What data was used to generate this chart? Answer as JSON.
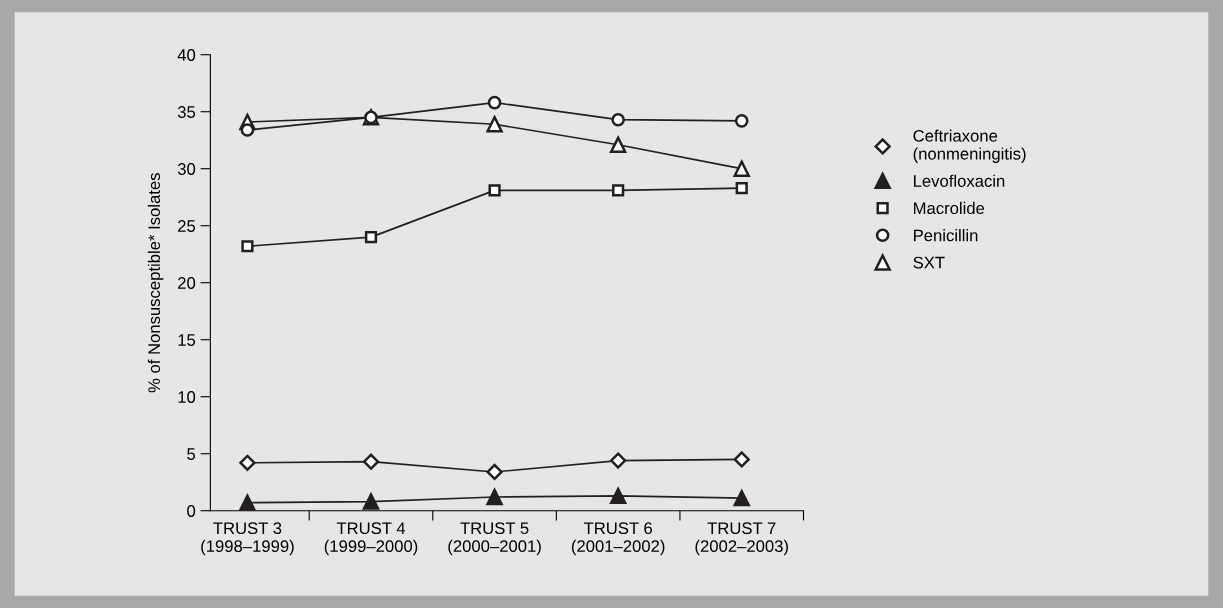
{
  "chart_data": {
    "type": "line",
    "ylabel": "% of Nonsusceptible* Isolates",
    "categories": [
      "TRUST 3\n(1998–1999)",
      "TRUST 4\n(1999–2000)",
      "TRUST 5\n(2000–2001)",
      "TRUST 6\n(2001–2002)",
      "TRUST 7\n(2002–2003)"
    ],
    "series": [
      {
        "name": "Ceftriaxone\n(nonmeningitis)",
        "color": "#231f20",
        "marker": "diamond",
        "values": [
          4.2,
          4.3,
          3.4,
          4.4,
          4.5
        ]
      },
      {
        "name": "Levofloxacin",
        "color": "#231f20",
        "marker": "triangle_filled",
        "values": [
          0.7,
          0.8,
          1.2,
          1.3,
          1.1
        ]
      },
      {
        "name": "Macrolide",
        "color": "#231f20",
        "marker": "square",
        "values": [
          23.2,
          24.0,
          28.1,
          28.1,
          28.3
        ]
      },
      {
        "name": "Penicillin",
        "color": "#231f20",
        "marker": "circle",
        "values": [
          33.4,
          34.5,
          35.8,
          34.3,
          34.2
        ]
      },
      {
        "name": "SXT",
        "color": "#231f20",
        "marker": "triangle",
        "values": [
          34.1,
          34.5,
          33.9,
          32.1,
          30.0
        ]
      }
    ],
    "ylim": [
      0,
      40
    ],
    "yticks": [
      0,
      5,
      10,
      15,
      20,
      25,
      30,
      35,
      40
    ],
    "grid": false,
    "legend": "right",
    "line_style": "solid"
  }
}
